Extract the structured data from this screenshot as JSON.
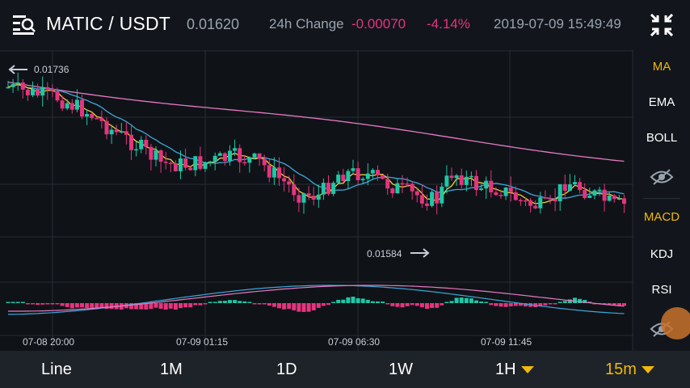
{
  "header": {
    "pair": "MATIC / USDT",
    "last_price": "0.01620",
    "change_label": "24h Change",
    "change_abs": "-0.00070",
    "change_pct": "-4.14%",
    "datetime": "2019-07-09 15:49:49"
  },
  "chart": {
    "high_label": "0.01736",
    "low_label": "0.01584",
    "x_ticks": [
      "07-08 20:00",
      "07-09 01:15",
      "07-09 06:30",
      "07-09 11:45"
    ]
  },
  "side_menu": {
    "ma": "MA",
    "ema": "EMA",
    "boll": "BOLL",
    "macd": "MACD",
    "kdj": "KDJ",
    "rsi": "RSI"
  },
  "timeframes": {
    "line": "Line",
    "m1": "1M",
    "d1": "1D",
    "w1": "1W",
    "h1": "1H",
    "m15": "15m"
  },
  "colors": {
    "up": "#1fc7a5",
    "down": "#e5347d",
    "accent": "#f0b90b",
    "ma7": "#f0d03a",
    "ma25": "#3fa6d9",
    "ma99": "#e879c3"
  }
}
